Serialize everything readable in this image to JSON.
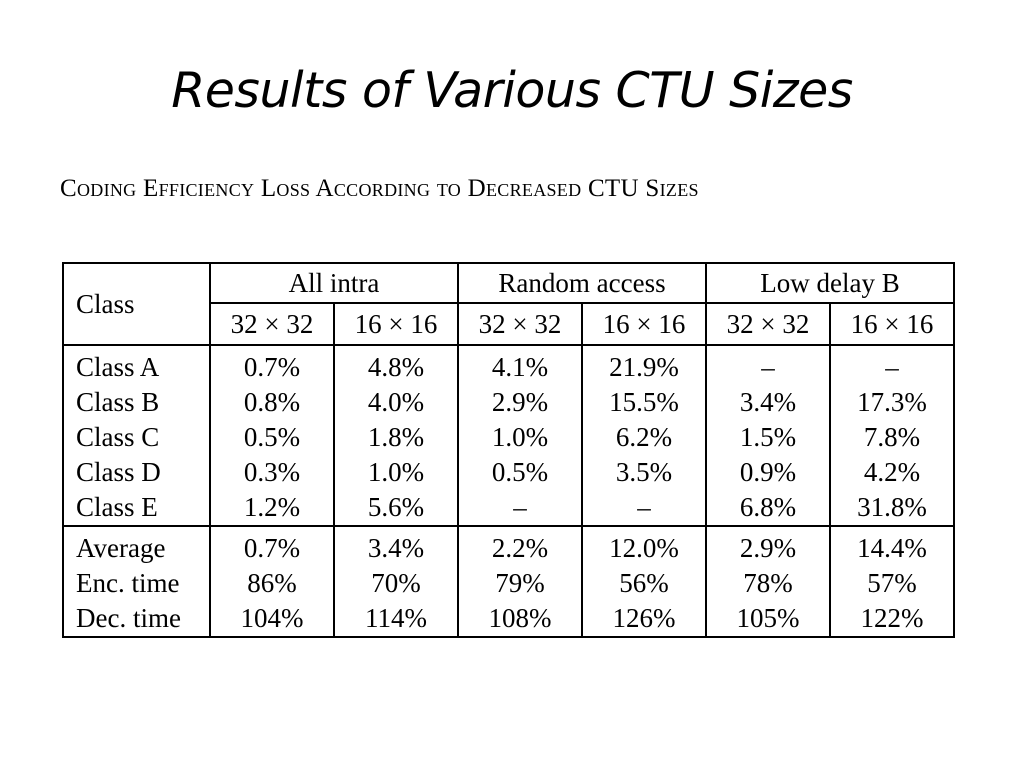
{
  "slide": {
    "title": "Results of Various CTU Sizes",
    "caption": "Coding Efficiency Loss According to Decreased CTU Sizes"
  },
  "table": {
    "corner_label": "Class",
    "groups": [
      "All intra",
      "Random access",
      "Low delay B"
    ],
    "subheaders": [
      "32 × 32",
      "16 × 16",
      "32 × 32",
      "16 × 16",
      "32 × 32",
      "16 × 16"
    ],
    "rows": [
      {
        "label": "Class A",
        "values": [
          "0.7%",
          "4.8%",
          "4.1%",
          "21.9%",
          "–",
          "–"
        ]
      },
      {
        "label": "Class B",
        "values": [
          "0.8%",
          "4.0%",
          "2.9%",
          "15.5%",
          "3.4%",
          "17.3%"
        ]
      },
      {
        "label": "Class C",
        "values": [
          "0.5%",
          "1.8%",
          "1.0%",
          "6.2%",
          "1.5%",
          "7.8%"
        ]
      },
      {
        "label": "Class D",
        "values": [
          "0.3%",
          "1.0%",
          "0.5%",
          "3.5%",
          "0.9%",
          "4.2%"
        ]
      },
      {
        "label": "Class E",
        "values": [
          "1.2%",
          "5.6%",
          "–",
          "–",
          "6.8%",
          "31.8%"
        ]
      },
      {
        "label": "Average",
        "values": [
          "0.7%",
          "3.4%",
          "2.2%",
          "12.0%",
          "2.9%",
          "14.4%"
        ]
      },
      {
        "label": "Enc. time",
        "values": [
          "86%",
          "70%",
          "79%",
          "56%",
          "78%",
          "57%"
        ]
      },
      {
        "label": "Dec. time",
        "values": [
          "104%",
          "114%",
          "108%",
          "126%",
          "105%",
          "122%"
        ]
      }
    ]
  }
}
